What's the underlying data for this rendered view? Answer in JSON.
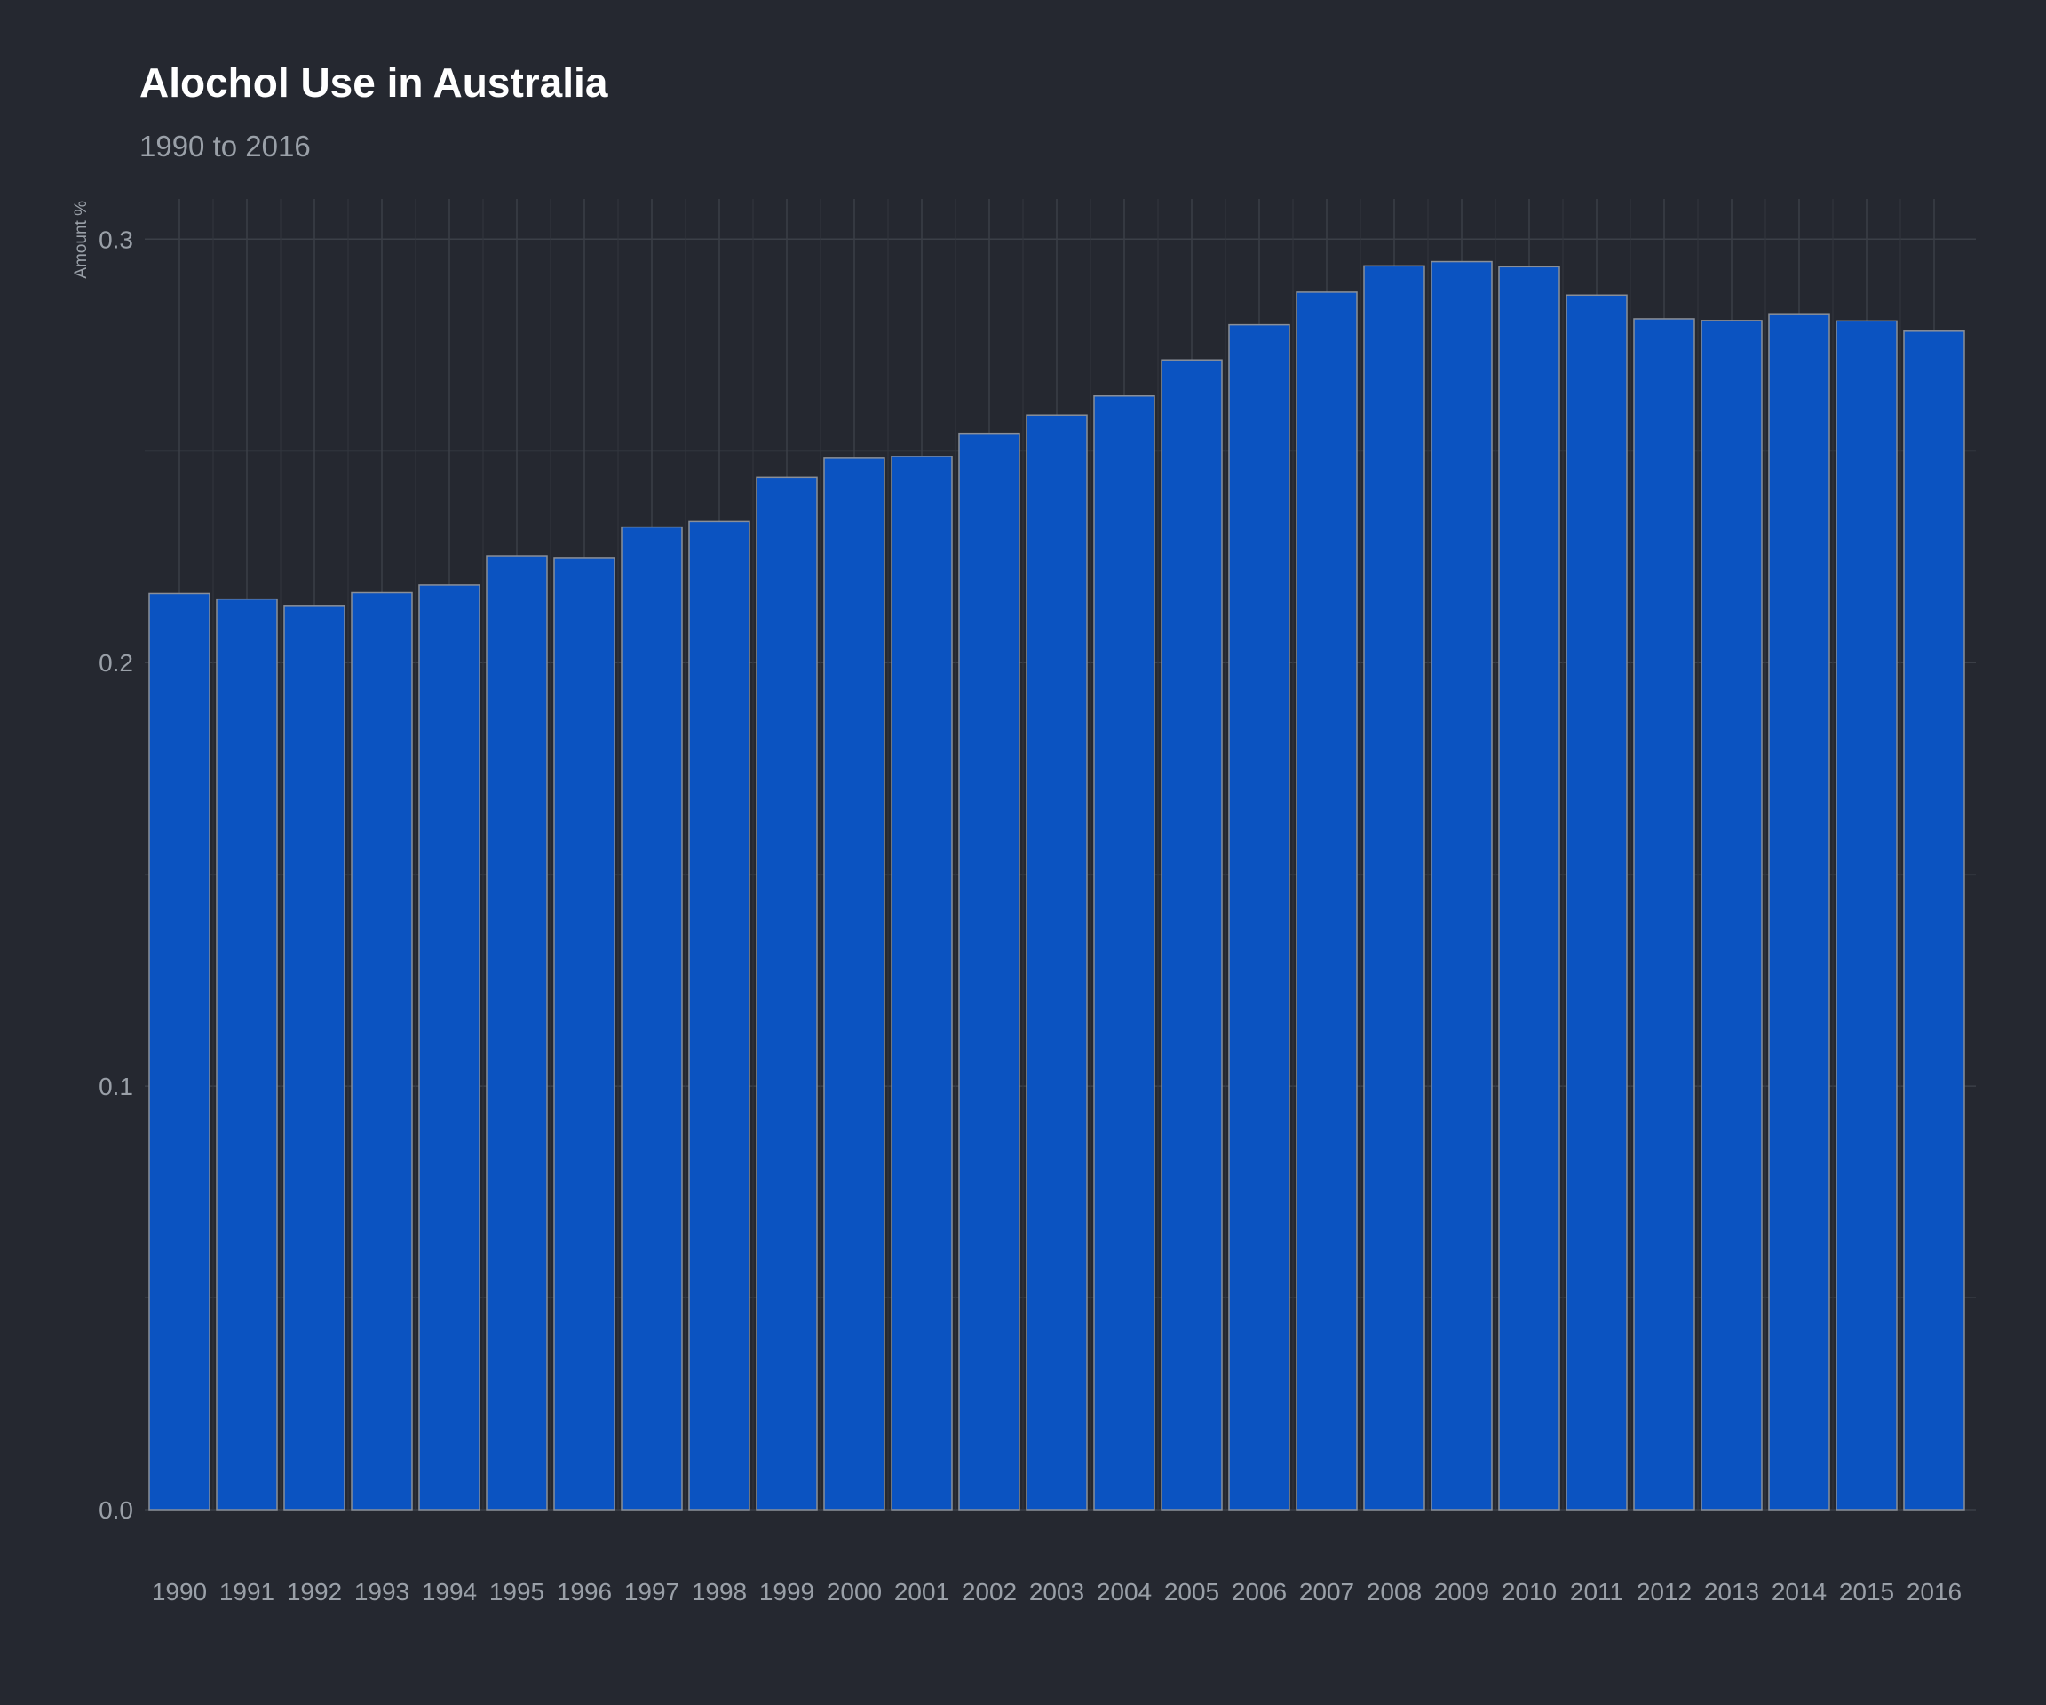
{
  "chart_data": {
    "type": "bar",
    "title": "Alochol Use in Australia",
    "subtitle": "1990 to 2016",
    "xlabel": "",
    "ylabel": "Amount %",
    "categories": [
      "1990",
      "1991",
      "1992",
      "1993",
      "1994",
      "1995",
      "1996",
      "1997",
      "1998",
      "1999",
      "2000",
      "2001",
      "2002",
      "2003",
      "2004",
      "2005",
      "2006",
      "2007",
      "2008",
      "2009",
      "2010",
      "2011",
      "2012",
      "2013",
      "2014",
      "2015",
      "2016"
    ],
    "values": [
      0.2163,
      0.215,
      0.2135,
      0.2165,
      0.2183,
      0.2252,
      0.2248,
      0.232,
      0.2333,
      0.2438,
      0.2483,
      0.2487,
      0.254,
      0.2585,
      0.263,
      0.2715,
      0.2798,
      0.2875,
      0.2937,
      0.2947,
      0.2935,
      0.2868,
      0.2812,
      0.2808,
      0.2822,
      0.2807,
      0.2783
    ],
    "yticks": [
      "0.0",
      "0.1",
      "0.2",
      "0.3"
    ],
    "ylim": [
      0,
      0.3095
    ],
    "grid": true,
    "colors": {
      "background": "#252830",
      "bar_fill": "#0b53c1",
      "bar_outline": "#8a8f98",
      "grid": "#3b3f47",
      "text": "#9aa0a8",
      "title": "#ffffff"
    }
  }
}
